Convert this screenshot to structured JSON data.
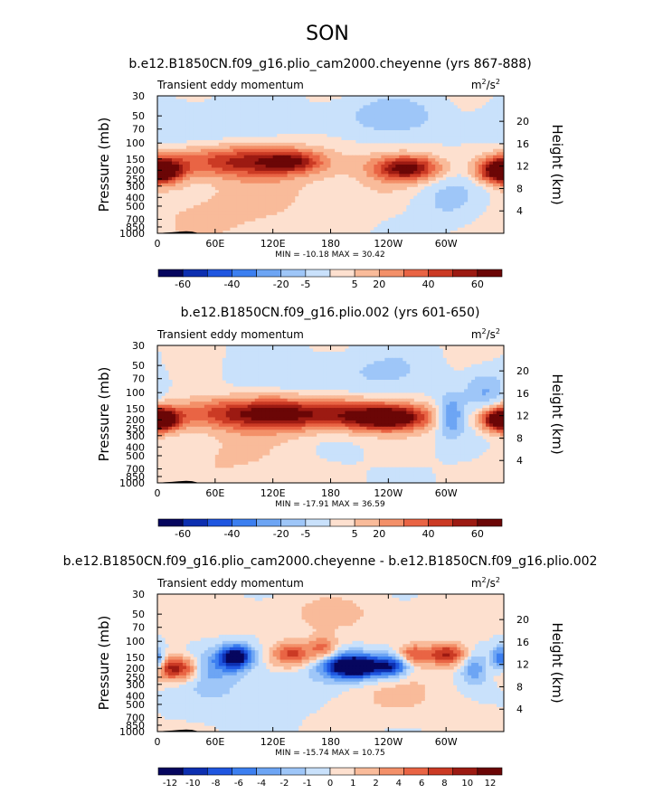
{
  "figure": {
    "season_title": "SON"
  },
  "colors": {
    "contour_fill": [
      "#06065e",
      "#0d2fb0",
      "#1f56e0",
      "#3c7ff0",
      "#6da5f4",
      "#9ec6f8",
      "#c9e1fb",
      "#fde0cf",
      "#f9bb9a",
      "#f39069",
      "#e96444",
      "#cb3a24",
      "#9c1a12",
      "#6b0606"
    ],
    "topography": "#000000"
  },
  "chart_data": [
    {
      "type": "heatmap",
      "title": "b.e12.B1850CN.f09_g16.plio_cam2000.cheyenne (yrs 867-888)",
      "left_label": "Transient eddy momentum",
      "units_base": "m",
      "units_exp": "2",
      "units_mid": "/s",
      "units_exp2": "2",
      "ylabel": "Pressure (mb)",
      "ylabel_right": "Height (km)",
      "pressure_ticks": [
        "30",
        "50",
        "70",
        "100",
        "150",
        "200",
        "250",
        "300",
        "400",
        "500",
        "700",
        "850",
        "1000"
      ],
      "pressure_values": [
        30,
        50,
        70,
        100,
        150,
        200,
        250,
        300,
        400,
        500,
        700,
        850,
        1000
      ],
      "height_ticks": [
        "4",
        "8",
        "12",
        "16",
        "20"
      ],
      "height_values": [
        4,
        8,
        12,
        16,
        20
      ],
      "lon_ticks": [
        "0",
        "60E",
        "120E",
        "180",
        "120W",
        "60W"
      ],
      "lon_values": [
        0,
        60,
        120,
        180,
        240,
        300
      ],
      "xlim": [
        0,
        360
      ],
      "ylim_mb": [
        1000,
        30
      ],
      "minmax": "MIN = -10.18   MAX =  30.42",
      "colorbar_labels": [
        "-60",
        "-40",
        "-20",
        "-5",
        "5",
        "20",
        "40",
        "60"
      ],
      "features": [
        {
          "lon": 0,
          "p": 200,
          "sx": 18,
          "sy": 0.23,
          "amp": 3.3
        },
        {
          "lon": 90,
          "p": 160,
          "sx": 60,
          "sy": 0.28,
          "amp": 3.6
        },
        {
          "lon": 140,
          "p": 160,
          "sx": 20,
          "sy": 0.18,
          "amp": 2.2
        },
        {
          "lon": 260,
          "p": 190,
          "sx": 24,
          "sy": 0.22,
          "amp": 4.5
        },
        {
          "lon": 360,
          "p": 210,
          "sx": 18,
          "sy": 0.22,
          "amp": 3.0
        },
        {
          "lon": 60,
          "p": 600,
          "sx": 60,
          "sy": 0.6,
          "amp": 0.9
        },
        {
          "lon": 200,
          "p": 300,
          "sx": 90,
          "sy": 0.5,
          "amp": 0.6
        },
        {
          "lon": 300,
          "p": 400,
          "sx": 30,
          "sy": 0.5,
          "amp": -1.2
        },
        {
          "lon": 230,
          "p": 50,
          "sx": 50,
          "sy": 0.35,
          "amp": -1.0
        },
        {
          "lon": 30,
          "p": 60,
          "sx": 40,
          "sy": 0.4,
          "amp": -0.9
        }
      ]
    },
    {
      "type": "heatmap",
      "title": "b.e12.B1850CN.f09_g16.plio.002 (yrs 601-650)",
      "left_label": "Transient eddy momentum",
      "units_base": "m",
      "units_exp": "2",
      "units_mid": "/s",
      "units_exp2": "2",
      "ylabel": "Pressure (mb)",
      "ylabel_right": "Height (km)",
      "pressure_ticks": [
        "30",
        "50",
        "70",
        "100",
        "150",
        "200",
        "250",
        "300",
        "400",
        "500",
        "700",
        "850",
        "1000"
      ],
      "pressure_values": [
        30,
        50,
        70,
        100,
        150,
        200,
        250,
        300,
        400,
        500,
        700,
        850,
        1000
      ],
      "height_ticks": [
        "4",
        "8",
        "12",
        "16",
        "20"
      ],
      "height_values": [
        4,
        8,
        12,
        16,
        20
      ],
      "lon_ticks": [
        "0",
        "60E",
        "120E",
        "180",
        "120W",
        "60W"
      ],
      "lon_values": [
        0,
        60,
        120,
        180,
        240,
        300
      ],
      "xlim": [
        0,
        360
      ],
      "ylim_mb": [
        1000,
        30
      ],
      "minmax": "MIN = -17.91   MAX =  36.59",
      "colorbar_labels": [
        "-60",
        "-40",
        "-20",
        "-5",
        "5",
        "20",
        "40",
        "60"
      ],
      "features": [
        {
          "lon": 0,
          "p": 200,
          "sx": 15,
          "sy": 0.2,
          "amp": 3.5
        },
        {
          "lon": 110,
          "p": 170,
          "sx": 75,
          "sy": 0.28,
          "amp": 3.6
        },
        {
          "lon": 240,
          "p": 190,
          "sx": 30,
          "sy": 0.22,
          "amp": 4.6
        },
        {
          "lon": 170,
          "p": 180,
          "sx": 60,
          "sy": 0.3,
          "amp": 1.6
        },
        {
          "lon": 360,
          "p": 200,
          "sx": 15,
          "sy": 0.2,
          "amp": 3.2
        },
        {
          "lon": 305,
          "p": 180,
          "sx": 10,
          "sy": 0.35,
          "amp": -2.6
        },
        {
          "lon": 340,
          "p": 100,
          "sx": 15,
          "sy": 0.4,
          "amp": -1.6
        },
        {
          "lon": 70,
          "p": 500,
          "sx": 50,
          "sy": 0.6,
          "amp": 0.8
        },
        {
          "lon": 200,
          "p": 60,
          "sx": 60,
          "sy": 0.4,
          "amp": -0.8
        }
      ]
    },
    {
      "type": "heatmap",
      "title": "b.e12.B1850CN.f09_g16.plio_cam2000.cheyenne - b.e12.B1850CN.f09_g16.plio.002",
      "left_label": "Transient eddy momentum",
      "units_base": "m",
      "units_exp": "2",
      "units_mid": "/s",
      "units_exp2": "2",
      "ylabel": "Pressure (mb)",
      "ylabel_right": "Height (km)",
      "pressure_ticks": [
        "30",
        "50",
        "70",
        "100",
        "150",
        "200",
        "250",
        "300",
        "400",
        "500",
        "700",
        "850",
        "1000"
      ],
      "pressure_values": [
        30,
        50,
        70,
        100,
        150,
        200,
        250,
        300,
        400,
        500,
        700,
        850,
        1000
      ],
      "height_ticks": [
        "4",
        "8",
        "12",
        "16",
        "20"
      ],
      "height_values": [
        4,
        8,
        12,
        16,
        20
      ],
      "lon_ticks": [
        "0",
        "60E",
        "120E",
        "180",
        "120W",
        "60W"
      ],
      "lon_values": [
        0,
        60,
        120,
        180,
        240,
        300
      ],
      "xlim": [
        0,
        360
      ],
      "ylim_mb": [
        1000,
        30
      ],
      "minmax": "MIN = -15.74   MAX =  10.75",
      "colorbar_labels": [
        "-12",
        "-10",
        "-8",
        "-6",
        "-4",
        "-2",
        "-1",
        "0",
        "1",
        "2",
        "4",
        "6",
        "8",
        "10",
        "12"
      ],
      "features": [
        {
          "lon": 18,
          "p": 200,
          "sx": 18,
          "sy": 0.22,
          "amp": 4.3
        },
        {
          "lon": 0,
          "p": 170,
          "sx": 6,
          "sy": 0.2,
          "amp": -2.2
        },
        {
          "lon": 55,
          "p": 190,
          "sx": 14,
          "sy": 0.3,
          "amp": -1.6
        },
        {
          "lon": 82,
          "p": 150,
          "sx": 12,
          "sy": 0.22,
          "amp": -5.4
        },
        {
          "lon": 140,
          "p": 140,
          "sx": 15,
          "sy": 0.22,
          "amp": 3.2
        },
        {
          "lon": 172,
          "p": 120,
          "sx": 10,
          "sy": 0.22,
          "amp": 2.4
        },
        {
          "lon": 205,
          "p": 190,
          "sx": 22,
          "sy": 0.22,
          "amp": -6.8
        },
        {
          "lon": 245,
          "p": 190,
          "sx": 12,
          "sy": 0.2,
          "amp": -3.4
        },
        {
          "lon": 265,
          "p": 140,
          "sx": 10,
          "sy": 0.18,
          "amp": 2.6
        },
        {
          "lon": 300,
          "p": 140,
          "sx": 15,
          "sy": 0.2,
          "amp": 3.8
        },
        {
          "lon": 330,
          "p": 200,
          "sx": 10,
          "sy": 0.3,
          "amp": -1.8
        },
        {
          "lon": 355,
          "p": 160,
          "sx": 6,
          "sy": 0.25,
          "amp": -2.4
        },
        {
          "lon": 110,
          "p": 350,
          "sx": 60,
          "sy": 0.5,
          "amp": -0.9
        },
        {
          "lon": 230,
          "p": 400,
          "sx": 70,
          "sy": 0.5,
          "amp": 0.8
        },
        {
          "lon": 180,
          "p": 50,
          "sx": 100,
          "sy": 0.4,
          "amp": 0.7
        }
      ]
    }
  ]
}
